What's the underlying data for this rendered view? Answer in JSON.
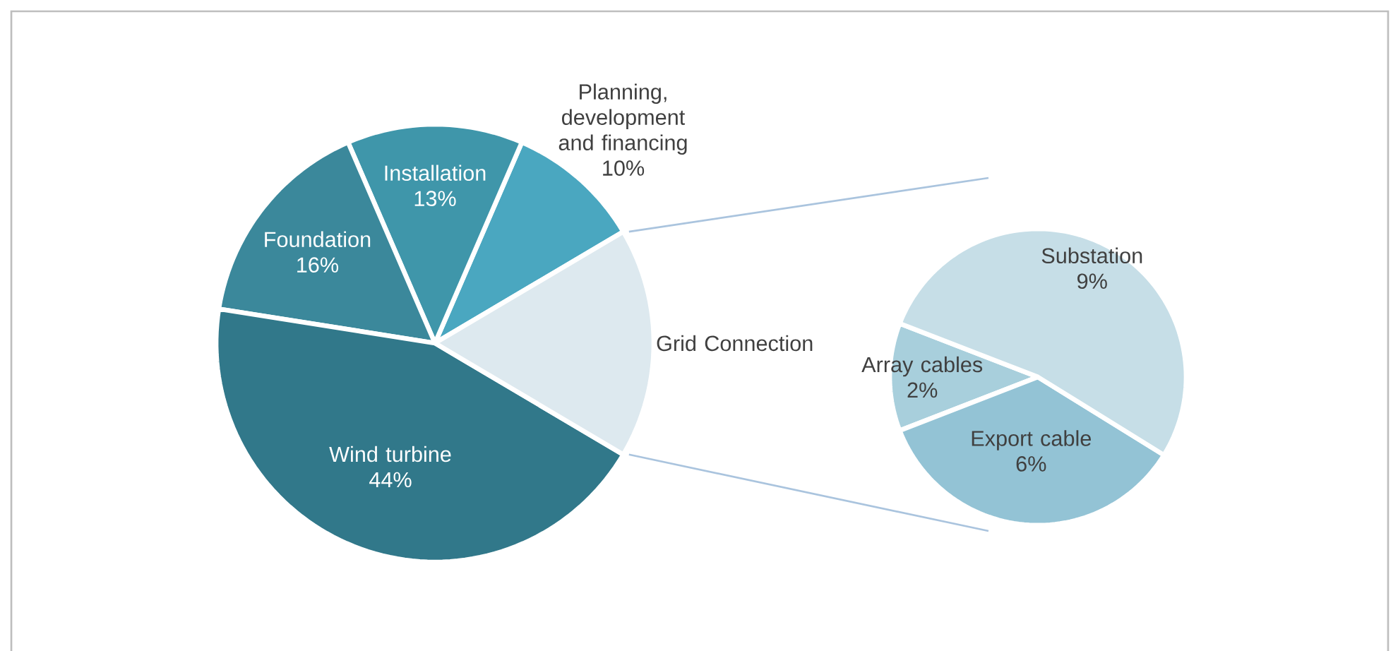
{
  "chart_data": [
    {
      "type": "pie",
      "categories": [
        "Planning, development and financing",
        "Installation",
        "Foundation",
        "Wind turbine",
        "Grid Connection"
      ],
      "values": [
        10,
        13,
        16,
        44,
        17
      ],
      "value_labels": [
        "10%",
        "13%",
        "16%",
        "44%",
        null
      ],
      "colors": [
        "#4aa7c0",
        "#3f96aa",
        "#3b889b",
        "#31788a",
        "#dde9ef"
      ]
    },
    {
      "type": "pie",
      "categories": [
        "Array cables",
        "Export cable",
        "Substation"
      ],
      "values": [
        2,
        6,
        9
      ],
      "value_labels": [
        "2%",
        "6%",
        "9%"
      ],
      "colors": [
        "#a8cfdc",
        "#93c3d5",
        "#c6dee7"
      ]
    }
  ]
}
